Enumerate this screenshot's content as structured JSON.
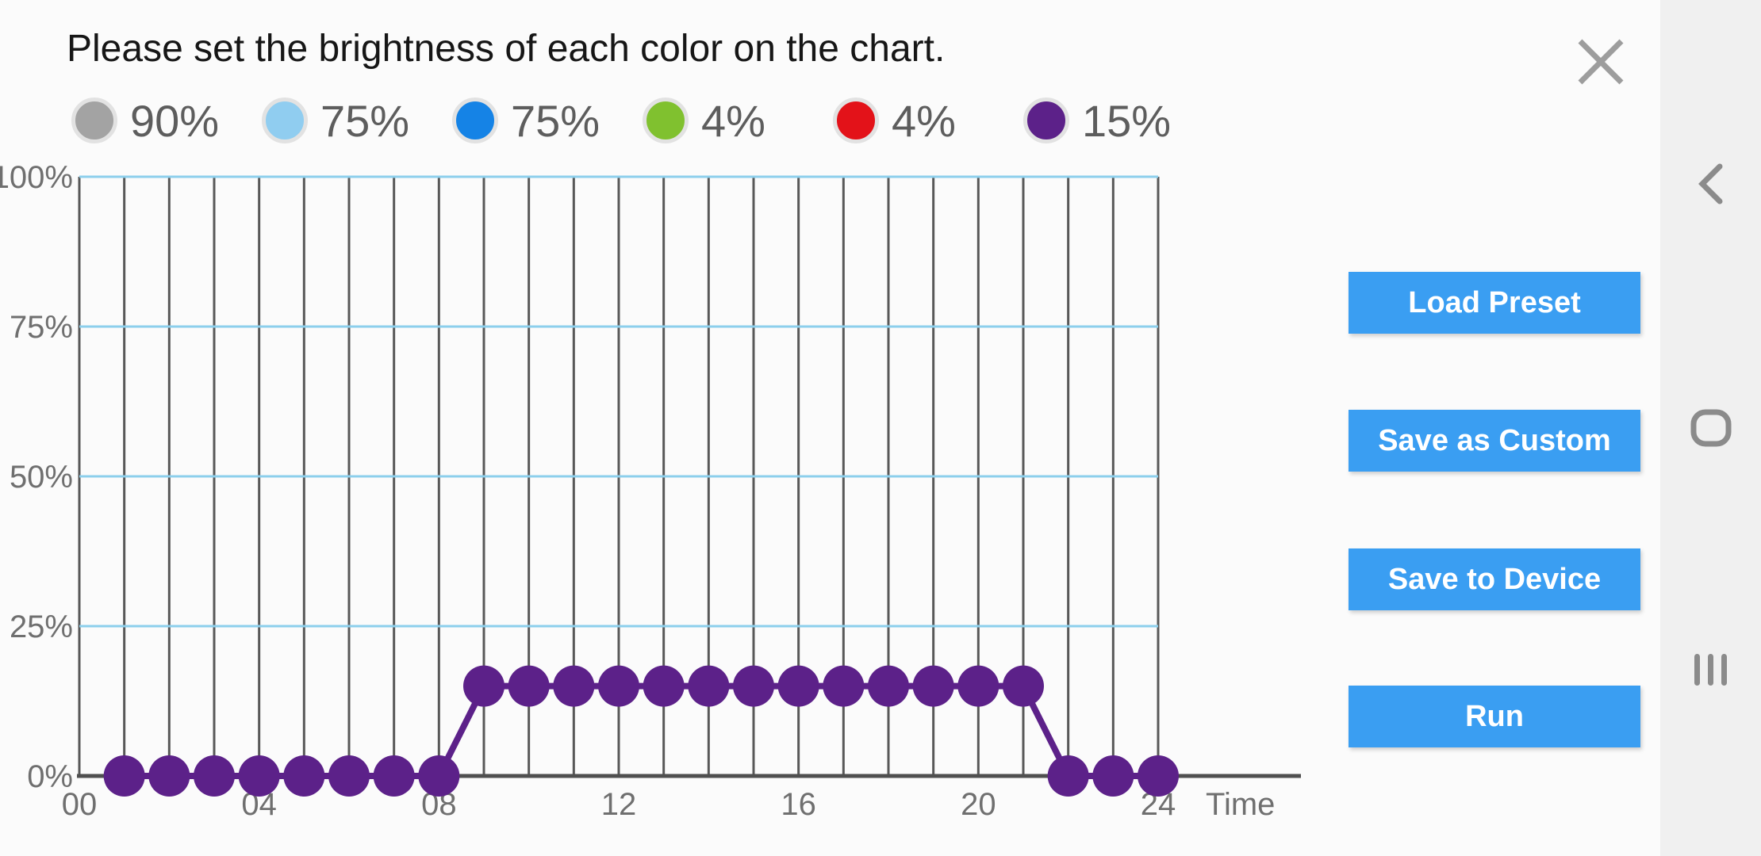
{
  "header": {
    "title": "Please set the brightness of each color on the chart."
  },
  "legend": {
    "items": [
      {
        "label": "90%",
        "color": "#a3a3a3"
      },
      {
        "label": "75%",
        "color": "#90cdf0"
      },
      {
        "label": "75%",
        "color": "#1583e6"
      },
      {
        "label": "4%",
        "color": "#80c12f"
      },
      {
        "label": "4%",
        "color": "#e31219"
      },
      {
        "label": "15%",
        "color": "#5c2189"
      }
    ]
  },
  "chart_data": {
    "type": "line",
    "title": "",
    "xlabel": "Time",
    "ylabel": "",
    "xlim": [
      0,
      24
    ],
    "ylim": [
      0,
      100
    ],
    "grid": true,
    "x_tick_labels": [
      "00",
      "04",
      "08",
      "12",
      "16",
      "20",
      "24"
    ],
    "x_tick_hours": [
      0,
      4,
      8,
      12,
      16,
      20,
      24
    ],
    "y_tick_labels": [
      "0%",
      "25%",
      "50%",
      "75%",
      "100%"
    ],
    "y_tick_values": [
      0,
      25,
      50,
      75,
      100
    ],
    "x": [
      1,
      2,
      3,
      4,
      5,
      6,
      7,
      8,
      9,
      10,
      11,
      12,
      13,
      14,
      15,
      16,
      17,
      18,
      19,
      20,
      21,
      22,
      23,
      24
    ],
    "values": [
      0,
      0,
      0,
      0,
      0,
      0,
      0,
      0,
      15,
      15,
      15,
      15,
      15,
      15,
      15,
      15,
      15,
      15,
      15,
      15,
      15,
      0,
      0,
      0
    ],
    "series_name": "purple-channel-brightness",
    "line_color": "#5c2189",
    "point_color": "#5c2189",
    "vertical_grid_color": "#585858",
    "horizontal_grid_color": "#8ccfec",
    "axis_color": "#4f4f4f"
  },
  "buttons": [
    {
      "label": "Load Preset"
    },
    {
      "label": "Save as Custom"
    },
    {
      "label": "Save to Device"
    },
    {
      "label": "Run"
    }
  ],
  "navbar": {
    "items": [
      {
        "icon": "back-icon"
      },
      {
        "icon": "home-icon"
      },
      {
        "icon": "recents-icon"
      }
    ]
  },
  "colors": {
    "accent_button": "#3a9ef2",
    "background": "#fbfbfb",
    "navbar_background": "#f0f0f0",
    "icon_gray": "#8b8b8b",
    "close_gray": "#9d9d9d",
    "text_gray": "#5d5d5d"
  }
}
